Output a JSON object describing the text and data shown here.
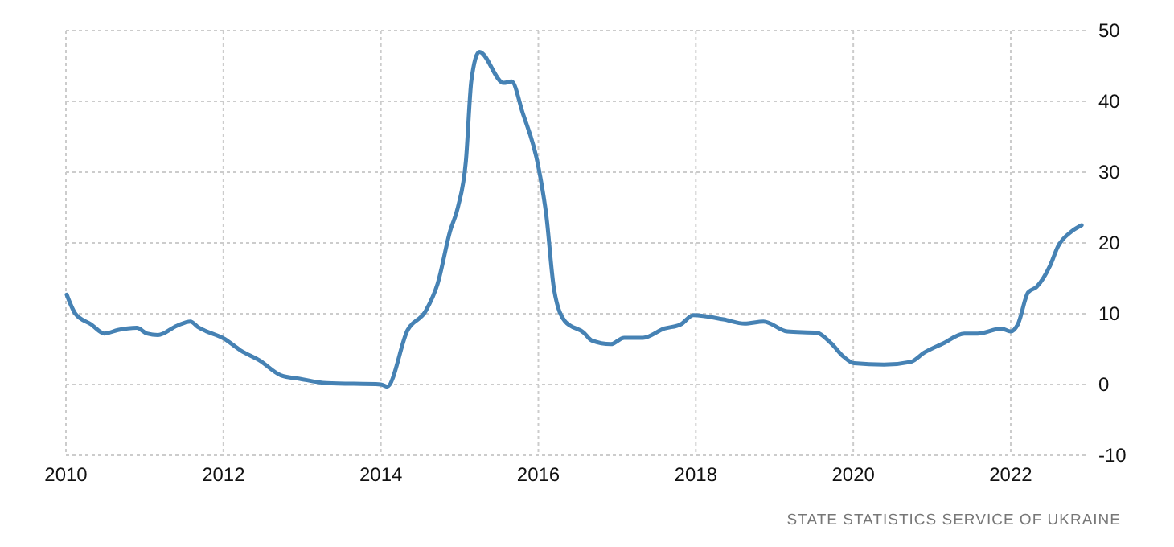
{
  "chart_data": {
    "type": "line",
    "annotations": [
      "STATE STATISTICS SERVICE OF UKRAINE"
    ],
    "x": [
      2010.01,
      2010.12,
      2010.32,
      2010.49,
      2010.66,
      2010.9,
      2011.03,
      2011.17,
      2011.41,
      2011.58,
      2011.68,
      2012.02,
      2012.22,
      2012.46,
      2012.73,
      2012.97,
      2013.31,
      2014.0,
      2014.08,
      2014.34,
      2014.57,
      2014.72,
      2014.88,
      2014.98,
      2015.08,
      2015.15,
      2015.25,
      2015.56,
      2015.66,
      2015.8,
      2016.0,
      2016.1,
      2016.2,
      2016.34,
      2016.58,
      2016.68,
      2016.92,
      2017.09,
      2017.33,
      2017.6,
      2017.81,
      2017.97,
      2018.35,
      2018.62,
      2018.86,
      2019.16,
      2019.54,
      2019.72,
      2019.88,
      2020.01,
      2020.39,
      2020.73,
      2020.9,
      2021.14,
      2021.41,
      2021.58,
      2021.88,
      2022.0,
      2022.09,
      2022.22,
      2022.33,
      2022.5,
      2022.6,
      2022.77,
      2022.9
    ],
    "series": [
      {
        "color": "#4682b4",
        "values": [
          12.7,
          10,
          8.5,
          7.2,
          7.7,
          8,
          7.2,
          7.0,
          8.3,
          8.9,
          8.1,
          6.4,
          4.8,
          3.4,
          1.3,
          0.8,
          0.2,
          0,
          -0.3,
          7.7,
          10.4,
          14.2,
          21.7,
          25.1,
          31.6,
          43,
          47,
          42.6,
          42.8,
          38.4,
          30.8,
          24,
          13.4,
          8.9,
          7.3,
          6.2,
          5.7,
          6.6,
          6.6,
          7.9,
          8.5,
          9.8,
          9.2,
          8.6,
          8.9,
          7.5,
          7.3,
          5.8,
          3.9,
          3.0,
          2.8,
          3.2,
          4.5,
          5.8,
          7.2,
          7.2,
          7.9,
          7.5,
          8.5,
          13,
          13.8,
          16.8,
          19.5,
          21.6,
          22.5
        ]
      }
    ],
    "xlim": [
      2010,
      2022.95
    ],
    "xticks": [
      2010,
      2012,
      2014,
      2016,
      2018,
      2020,
      2022
    ],
    "ylim": [
      -10,
      50
    ],
    "yticks": [
      -10,
      0,
      10,
      20,
      30,
      40,
      50
    ],
    "grid": true,
    "marker": "none",
    "line_style": "solid"
  }
}
